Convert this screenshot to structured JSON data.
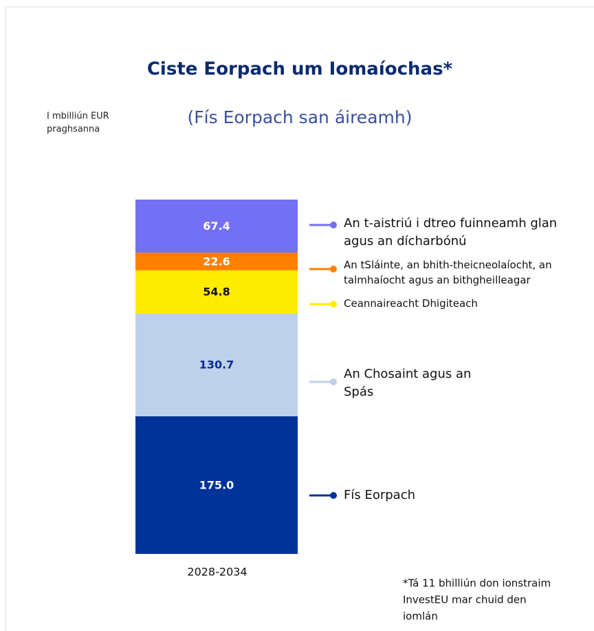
{
  "chart_data": {
    "type": "stacked_bar",
    "title": "Ciste Eorpach um Iomaíochas*",
    "subtitle": "(Fís Eorpach san áireamh)",
    "unit_note": [
      "I mbilliún EUR",
      "praghsanna"
    ],
    "categories": [
      "2028-2034"
    ],
    "series": [
      {
        "name": "Fís Eorpach",
        "color": "#003399",
        "values": [
          175.0
        ],
        "value_labels": [
          "175.0"
        ]
      },
      {
        "name": "An Chosaint agus an Spás",
        "color": "#bdd1ea",
        "values": [
          130.7
        ],
        "value_labels": [
          "130.7"
        ]
      },
      {
        "name": "Ceannaireacht Dhigiteach",
        "color": "#ffed00",
        "values": [
          54.8
        ],
        "value_labels": [
          "54.8"
        ]
      },
      {
        "name": "An tSláinte, an bhith-theicneolaíocht, an talmhaíocht agus an bithgheilleagar",
        "color": "#ff8000",
        "values": [
          22.6
        ],
        "value_labels": [
          "22.6"
        ]
      },
      {
        "name": "An t-aistriú i dtreo fuinneamh glan agus an dícharbónú",
        "color": "#7370f5",
        "values": [
          67.4
        ],
        "value_labels": [
          "67.4"
        ]
      }
    ],
    "footnote": [
      "*Tá 11 bhilliún don ionstraim",
      "InvestEU mar chuid den",
      "iomlán"
    ]
  }
}
